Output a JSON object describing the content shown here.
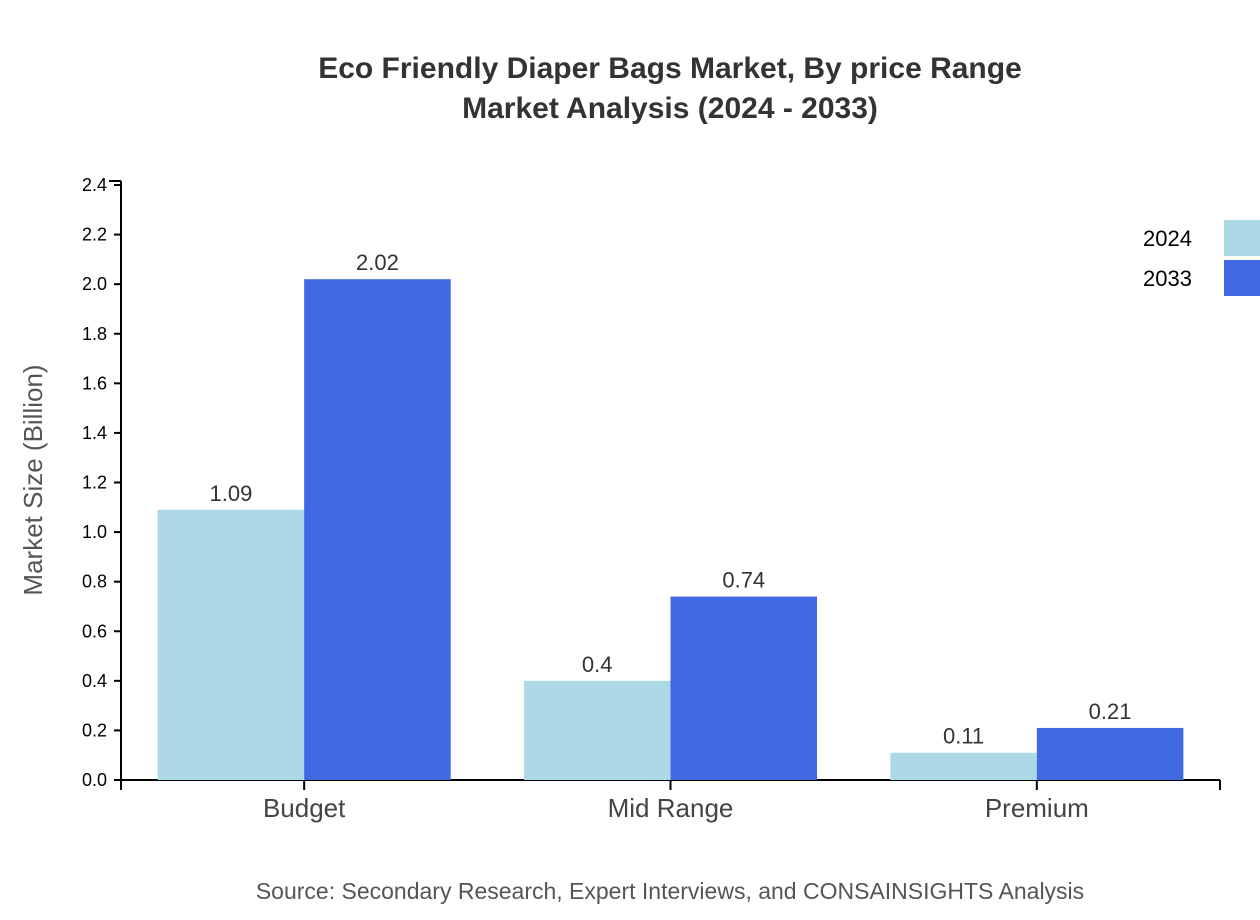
{
  "chart_data": {
    "type": "bar",
    "title": "Eco Friendly Diaper Bags Market, By price Range",
    "subtitle": "Market Analysis (2024 - 2033)",
    "xlabel": "",
    "ylabel": "Market Size (Billion)",
    "ylim": [
      0,
      2.4
    ],
    "yticks": [
      "0.0",
      "0.2",
      "0.4",
      "0.6",
      "0.8",
      "1.0",
      "1.2",
      "1.4",
      "1.6",
      "1.8",
      "2.0",
      "2.2",
      "2.4"
    ],
    "categories": [
      "Budget",
      "Mid Range",
      "Premium"
    ],
    "series": [
      {
        "name": "2024",
        "values": [
          1.09,
          0.4,
          0.11
        ],
        "labels": [
          "1.09",
          "0.4",
          "0.11"
        ],
        "color": "#ADD8E6"
      },
      {
        "name": "2033",
        "values": [
          2.02,
          0.74,
          0.21
        ],
        "labels": [
          "2.02",
          "0.74",
          "0.21"
        ],
        "color": "#4169E1"
      }
    ],
    "legend": "top-right",
    "grid": false
  },
  "source": "Source: Secondary Research, Expert Interviews, and CONSAINSIGHTS Analysis"
}
